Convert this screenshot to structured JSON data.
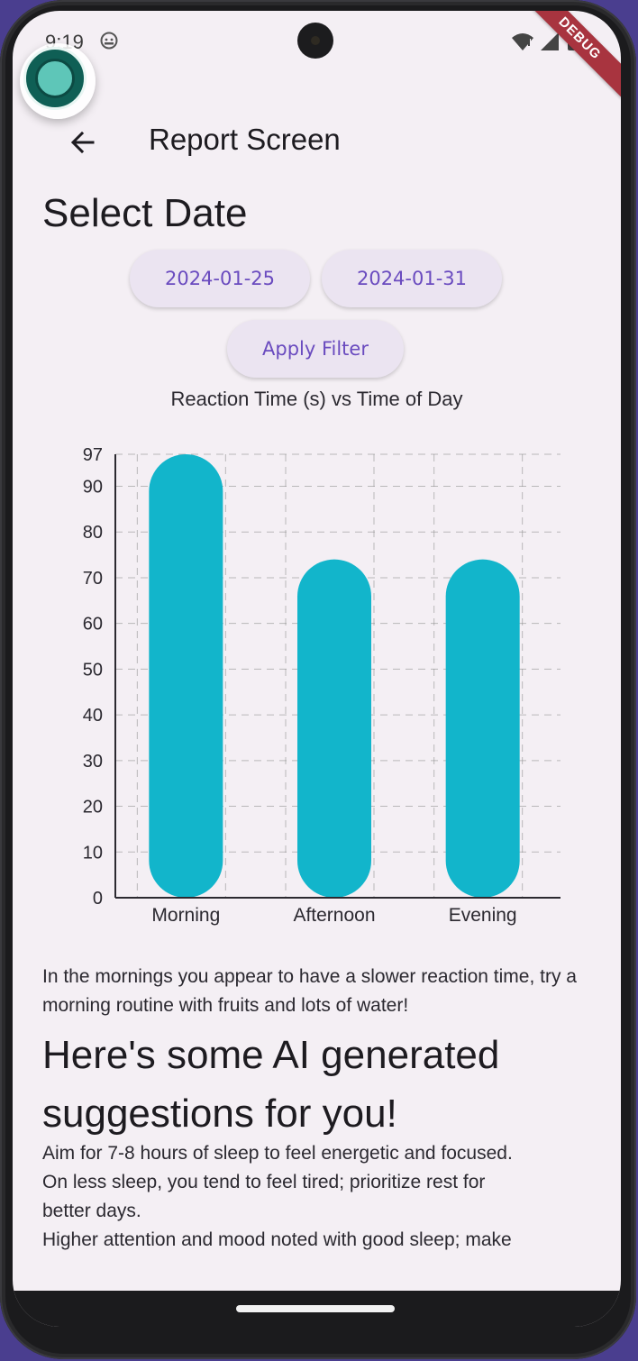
{
  "status_bar": {
    "time": "9:19"
  },
  "debug_banner": "DEBUG",
  "app_bar": {
    "title": "Report Screen"
  },
  "date_section": {
    "heading": "Select Date",
    "start_date": "2024-01-25",
    "end_date": "2024-01-31",
    "apply_label": "Apply Filter"
  },
  "chart_data": {
    "type": "bar",
    "title": "Reaction Time (s) vs Time of Day",
    "xlabel": "",
    "ylabel": "",
    "categories": [
      "Morning",
      "Afternoon",
      "Evening"
    ],
    "values": [
      97,
      74,
      74
    ],
    "ylim": [
      0,
      97
    ],
    "yticks": [
      "0",
      "10",
      "20",
      "30",
      "40",
      "50",
      "60",
      "70",
      "80",
      "90",
      "97"
    ],
    "grid": true,
    "bar_color": "#12b5cb"
  },
  "insight": "In the mornings you appear to have a slower reaction time, try a morning routine with fruits and lots of water!",
  "ai_section": {
    "heading": "Here's some AI generated suggestions for you!",
    "lines": [
      "Aim for 7-8 hours of sleep to feel energetic and focused.",
      "On less sleep, you tend to feel tired; prioritize rest for",
      "better days.",
      "Higher attention and mood noted with good sleep; make"
    ]
  },
  "colors": {
    "background": "#f4eff4",
    "accent": "#6a4bbf",
    "bar": "#12b5cb"
  }
}
